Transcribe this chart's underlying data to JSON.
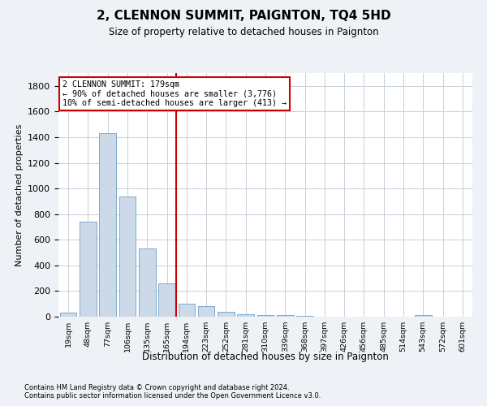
{
  "title": "2, CLENNON SUMMIT, PAIGNTON, TQ4 5HD",
  "subtitle": "Size of property relative to detached houses in Paignton",
  "xlabel": "Distribution of detached houses by size in Paignton",
  "ylabel": "Number of detached properties",
  "footnote1": "Contains HM Land Registry data © Crown copyright and database right 2024.",
  "footnote2": "Contains public sector information licensed under the Open Government Licence v3.0.",
  "categories": [
    "19sqm",
    "48sqm",
    "77sqm",
    "106sqm",
    "135sqm",
    "165sqm",
    "194sqm",
    "223sqm",
    "252sqm",
    "281sqm",
    "310sqm",
    "339sqm",
    "368sqm",
    "397sqm",
    "426sqm",
    "456sqm",
    "485sqm",
    "514sqm",
    "543sqm",
    "572sqm",
    "601sqm"
  ],
  "values": [
    30,
    740,
    1430,
    940,
    530,
    260,
    100,
    85,
    35,
    20,
    15,
    10,
    5,
    2,
    2,
    1,
    0,
    0,
    10,
    0,
    0
  ],
  "bar_color": "#ccd9e8",
  "bar_edge_color": "#7aaac8",
  "subject_line_color": "#cc0000",
  "annotation_box_color": "#cc0000",
  "annotation_text_line1": "2 CLENNON SUMMIT: 179sqm",
  "annotation_text_line2": "← 90% of detached houses are smaller (3,776)",
  "annotation_text_line3": "10% of semi-detached houses are larger (413) →",
  "ylim": [
    0,
    1900
  ],
  "yticks": [
    0,
    200,
    400,
    600,
    800,
    1000,
    1200,
    1400,
    1600,
    1800
  ],
  "bg_color": "#eef2f7",
  "plot_bg_color": "#ffffff",
  "grid_color": "#c8d0da"
}
